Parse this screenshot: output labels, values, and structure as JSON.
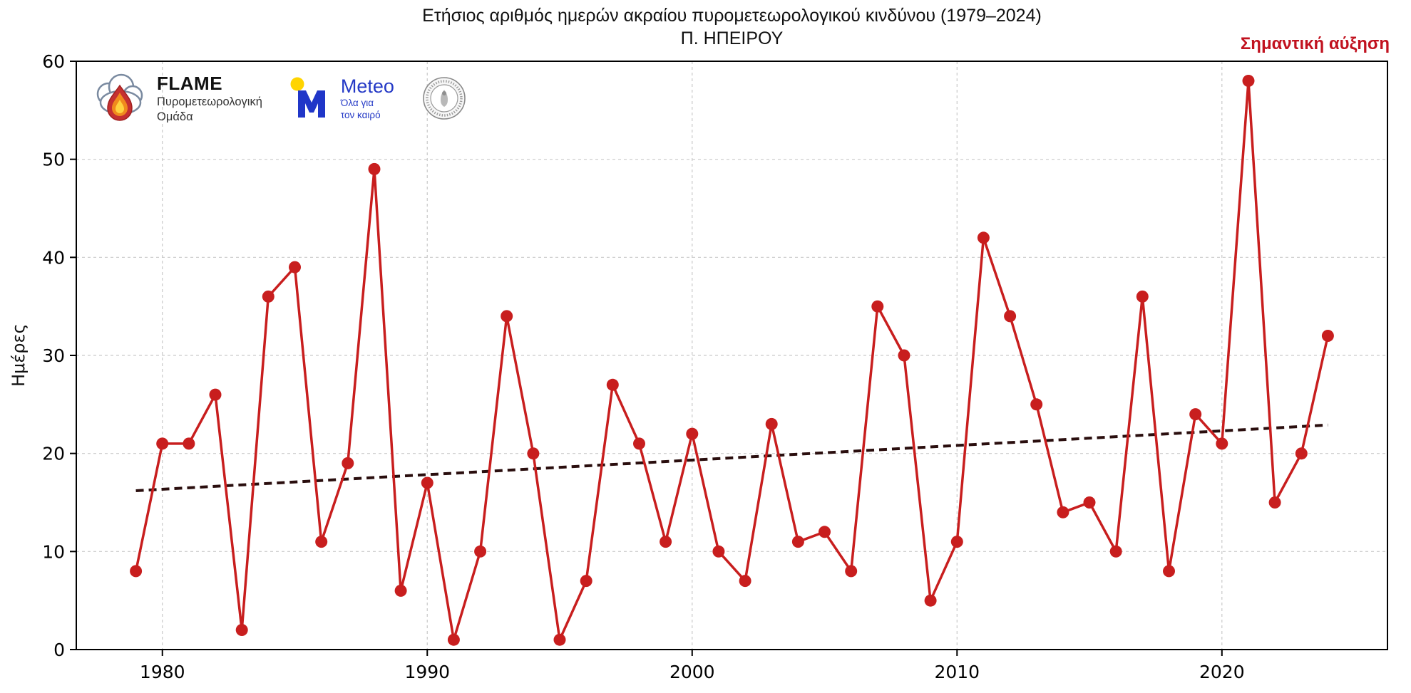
{
  "header": {
    "title": "Ετήσιος αριθμός ημερών ακραίου πυρομετεωρολογικού κινδύνου (1979–2024)",
    "subtitle": "Π. ΗΠΕΙΡΟΥ",
    "annotation": "Σημαντική αύξηση",
    "annotation_color": "#c1121f"
  },
  "logos": {
    "flame": {
      "name": "FLAME",
      "sub1": "Πυρομετεωρολογική",
      "sub2": "Ομάδα"
    },
    "meteo": {
      "name": "Meteo",
      "sub1": "Όλα για",
      "sub2": "τον καιρό"
    },
    "seal": {
      "name": "national-observatory-of-athens-seal"
    }
  },
  "chart_data": {
    "type": "line",
    "title": "Ετήσιος αριθμός ημερών ακραίου πυρομετεωρολογικού κινδύνου (1979–2024) — Π. ΗΠΕΙΡΟΥ",
    "xlabel": "",
    "ylabel": "Ημέρες",
    "grid": true,
    "legend": "none",
    "xlim": [
      1976.75,
      2026.25
    ],
    "ylim": [
      0,
      60
    ],
    "x_ticks": [
      1980,
      1990,
      2000,
      2010,
      2020
    ],
    "y_ticks": [
      0,
      10,
      20,
      30,
      40,
      50,
      60
    ],
    "line_color": "#c81e1e",
    "marker": "circle",
    "years": [
      1979,
      1980,
      1981,
      1982,
      1983,
      1984,
      1985,
      1986,
      1987,
      1988,
      1989,
      1990,
      1991,
      1992,
      1993,
      1994,
      1995,
      1996,
      1997,
      1998,
      1999,
      2000,
      2001,
      2002,
      2003,
      2004,
      2005,
      2006,
      2007,
      2008,
      2009,
      2010,
      2011,
      2012,
      2013,
      2014,
      2015,
      2016,
      2017,
      2018,
      2019,
      2020,
      2021,
      2022,
      2023,
      2024
    ],
    "values": [
      8,
      21,
      21,
      26,
      2,
      36,
      39,
      11,
      19,
      49,
      6,
      17,
      1,
      10,
      34,
      20,
      1,
      7,
      27,
      21,
      11,
      22,
      10,
      7,
      23,
      11,
      12,
      8,
      35,
      30,
      5,
      11,
      42,
      34,
      25,
      14,
      15,
      10,
      36,
      8,
      24,
      21,
      58,
      15,
      20,
      32
    ],
    "trend": {
      "style": "dashed",
      "color": "#2a0e0e",
      "x": [
        1979,
        2024
      ],
      "y": [
        16.2,
        22.9
      ]
    }
  }
}
